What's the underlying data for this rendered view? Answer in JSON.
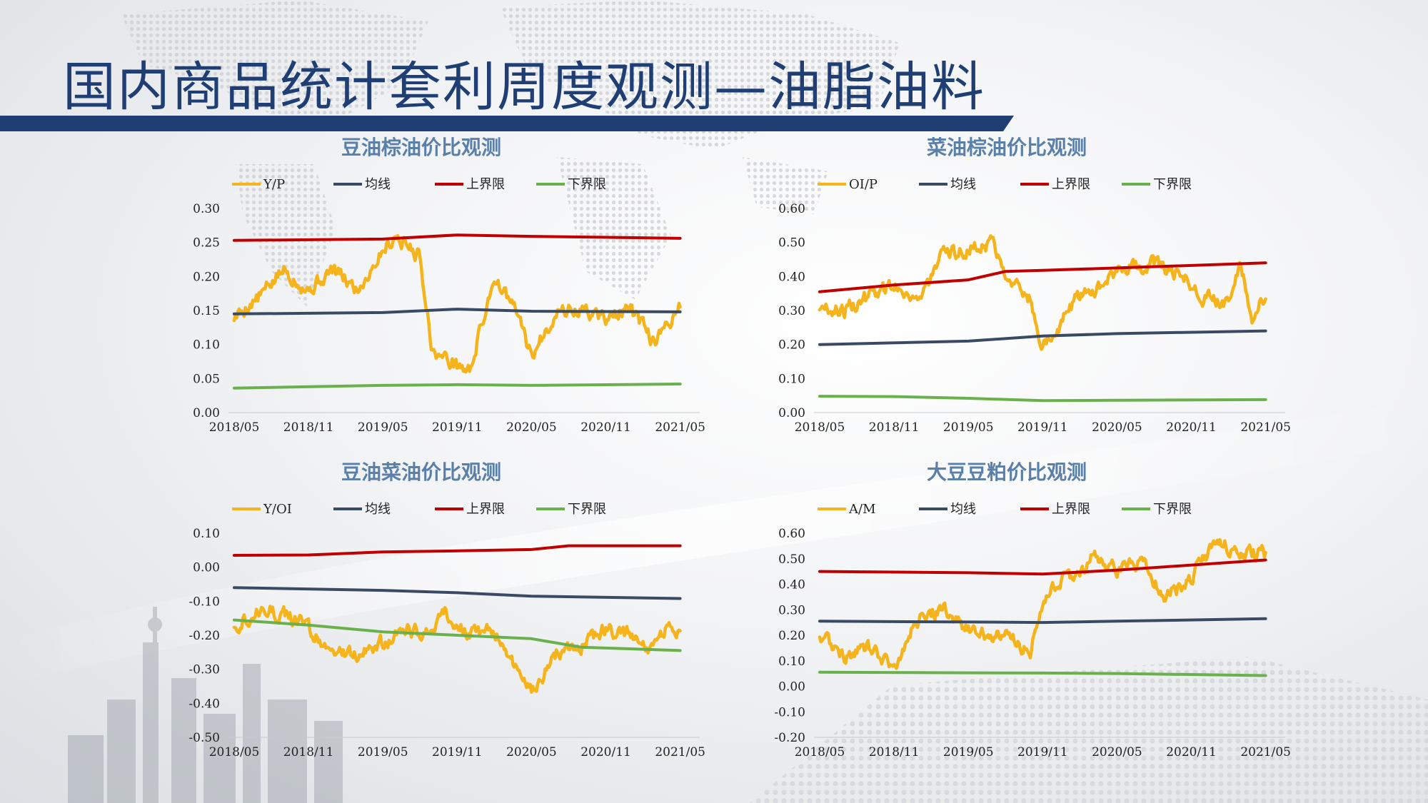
{
  "page": {
    "title": "国内商品统计套利周度观测—油脂油料"
  },
  "chart_data": [
    {
      "type": "line",
      "title": "豆油棕油价比观测",
      "x_ticks": [
        "2018/05",
        "2018/11",
        "2019/05",
        "2019/11",
        "2020/05",
        "2020/11",
        "2021/05"
      ],
      "ylim": [
        0.0,
        0.3
      ],
      "y_ticks": [
        "0.30",
        "0.25",
        "0.20",
        "0.15",
        "0.10",
        "0.05",
        "0.00"
      ],
      "legend_position": "top",
      "grid": false,
      "series": [
        {
          "name": "Y/P",
          "color": "#f5b41b",
          "volatile": true,
          "x": [
            "2018/05",
            "2018/07",
            "2018/09",
            "2018/11",
            "2019/01",
            "2019/03",
            "2019/05",
            "2019/06",
            "2019/08",
            "2019/09",
            "2019/11",
            "2019/12",
            "2020/02",
            "2020/04",
            "2020/05",
            "2020/07",
            "2020/09",
            "2020/11",
            "2021/01",
            "2021/03",
            "2021/04",
            "2021/05"
          ],
          "values": [
            0.14,
            0.17,
            0.21,
            0.18,
            0.21,
            0.18,
            0.24,
            0.26,
            0.23,
            0.09,
            0.07,
            0.06,
            0.2,
            0.14,
            0.08,
            0.15,
            0.15,
            0.14,
            0.15,
            0.1,
            0.13,
            0.16
          ]
        },
        {
          "name": "均线",
          "color": "#3b4a63",
          "x": [
            "2018/05",
            "2019/05",
            "2019/11",
            "2020/05",
            "2021/05"
          ],
          "values": [
            0.145,
            0.147,
            0.152,
            0.149,
            0.148
          ]
        },
        {
          "name": "上界限",
          "color": "#c00000",
          "x": [
            "2018/05",
            "2019/05",
            "2019/11",
            "2020/05",
            "2021/05"
          ],
          "values": [
            0.253,
            0.255,
            0.261,
            0.259,
            0.256
          ]
        },
        {
          "name": "下界限",
          "color": "#6ab04c",
          "x": [
            "2018/05",
            "2019/05",
            "2019/11",
            "2020/05",
            "2021/05"
          ],
          "values": [
            0.036,
            0.04,
            0.041,
            0.04,
            0.042
          ]
        }
      ]
    },
    {
      "type": "line",
      "title": "菜油棕油价比观测",
      "x_ticks": [
        "2018/05",
        "2018/11",
        "2019/05",
        "2019/11",
        "2020/05",
        "2020/11",
        "2021/05"
      ],
      "ylim": [
        0.0,
        0.6
      ],
      "y_ticks": [
        "0.60",
        "0.50",
        "0.40",
        "0.30",
        "0.20",
        "0.10",
        "0.00"
      ],
      "legend_position": "top",
      "grid": false,
      "series": [
        {
          "name": "OI/P",
          "color": "#f5b41b",
          "volatile": true,
          "x": [
            "2018/05",
            "2018/07",
            "2018/09",
            "2018/11",
            "2019/01",
            "2019/03",
            "2019/05",
            "2019/07",
            "2019/08",
            "2019/10",
            "2019/11",
            "2019/12",
            "2020/02",
            "2020/04",
            "2020/06",
            "2020/08",
            "2020/10",
            "2020/12",
            "2021/02",
            "2021/03",
            "2021/04",
            "2021/05"
          ],
          "values": [
            0.31,
            0.3,
            0.34,
            0.38,
            0.33,
            0.46,
            0.48,
            0.5,
            0.42,
            0.33,
            0.2,
            0.24,
            0.35,
            0.38,
            0.43,
            0.44,
            0.41,
            0.34,
            0.33,
            0.44,
            0.27,
            0.35
          ]
        },
        {
          "name": "均线",
          "color": "#3b4a63",
          "x": [
            "2018/05",
            "2019/05",
            "2019/11",
            "2020/05",
            "2021/05"
          ],
          "values": [
            0.2,
            0.21,
            0.225,
            0.232,
            0.24
          ]
        },
        {
          "name": "上界限",
          "color": "#c00000",
          "x": [
            "2018/05",
            "2018/11",
            "2019/05",
            "2019/08",
            "2019/11",
            "2020/05",
            "2021/05"
          ],
          "values": [
            0.355,
            0.375,
            0.39,
            0.415,
            0.418,
            0.425,
            0.44
          ]
        },
        {
          "name": "下界限",
          "color": "#6ab04c",
          "x": [
            "2018/05",
            "2018/11",
            "2019/05",
            "2019/11",
            "2020/05",
            "2021/05"
          ],
          "values": [
            0.048,
            0.047,
            0.042,
            0.035,
            0.036,
            0.038
          ]
        }
      ]
    },
    {
      "type": "line",
      "title": "豆油菜油价比观测",
      "x_ticks": [
        "2018/05",
        "2018/11",
        "2019/05",
        "2019/11",
        "2020/05",
        "2020/11",
        "2021/05"
      ],
      "ylim": [
        -0.5,
        0.1
      ],
      "y_ticks": [
        "0.10",
        "0.00",
        "-0.10",
        "-0.20",
        "-0.30",
        "-0.40",
        "-0.50"
      ],
      "legend_position": "top",
      "grid": false,
      "series": [
        {
          "name": "Y/OI",
          "color": "#f5b41b",
          "volatile": true,
          "x": [
            "2018/05",
            "2018/07",
            "2018/09",
            "2018/11",
            "2019/01",
            "2019/03",
            "2019/05",
            "2019/07",
            "2019/09",
            "2019/10",
            "2019/12",
            "2020/02",
            "2020/04",
            "2020/05",
            "2020/07",
            "2020/09",
            "2020/11",
            "2021/01",
            "2021/03",
            "2021/04",
            "2021/05"
          ],
          "values": [
            -0.17,
            -0.12,
            -0.14,
            -0.18,
            -0.25,
            -0.26,
            -0.22,
            -0.19,
            -0.18,
            -0.13,
            -0.2,
            -0.19,
            -0.3,
            -0.37,
            -0.25,
            -0.23,
            -0.18,
            -0.2,
            -0.24,
            -0.17,
            -0.19
          ]
        },
        {
          "name": "均线",
          "color": "#3b4a63",
          "x": [
            "2018/05",
            "2019/05",
            "2019/11",
            "2020/05",
            "2021/05"
          ],
          "values": [
            -0.06,
            -0.068,
            -0.075,
            -0.085,
            -0.092
          ]
        },
        {
          "name": "上界限",
          "color": "#c00000",
          "x": [
            "2018/05",
            "2018/11",
            "2019/05",
            "2019/11",
            "2020/05",
            "2020/08",
            "2021/05"
          ],
          "values": [
            0.035,
            0.036,
            0.045,
            0.048,
            0.052,
            0.063,
            0.063
          ]
        },
        {
          "name": "下界限",
          "color": "#6ab04c",
          "x": [
            "2018/05",
            "2018/11",
            "2019/05",
            "2019/11",
            "2020/05",
            "2020/09",
            "2021/05"
          ],
          "values": [
            -0.155,
            -0.17,
            -0.19,
            -0.2,
            -0.21,
            -0.235,
            -0.245
          ]
        }
      ]
    },
    {
      "type": "line",
      "title": "大豆豆粕价比观测",
      "x_ticks": [
        "2018/05",
        "2018/11",
        "2019/05",
        "2019/11",
        "2020/05",
        "2020/11",
        "2021/05"
      ],
      "ylim": [
        -0.2,
        0.6
      ],
      "y_ticks": [
        "0.60",
        "0.50",
        "0.40",
        "0.30",
        "0.20",
        "0.10",
        "0.00",
        "-0.10",
        "-0.20"
      ],
      "legend_position": "top",
      "grid": false,
      "series": [
        {
          "name": "A/M",
          "color": "#f5b41b",
          "volatile": true,
          "x": [
            "2018/05",
            "2018/07",
            "2018/09",
            "2018/11",
            "2019/01",
            "2019/03",
            "2019/05",
            "2019/07",
            "2019/09",
            "2019/10",
            "2019/11",
            "2020/01",
            "2020/03",
            "2020/05",
            "2020/07",
            "2020/09",
            "2020/11",
            "2021/01",
            "2021/03",
            "2021/05"
          ],
          "values": [
            0.2,
            0.12,
            0.15,
            0.08,
            0.27,
            0.3,
            0.22,
            0.2,
            0.18,
            0.12,
            0.35,
            0.42,
            0.5,
            0.46,
            0.48,
            0.35,
            0.42,
            0.57,
            0.52,
            0.52
          ]
        },
        {
          "name": "均线",
          "color": "#3b4a63",
          "x": [
            "2018/05",
            "2019/05",
            "2019/11",
            "2020/05",
            "2021/05"
          ],
          "values": [
            0.255,
            0.252,
            0.25,
            0.255,
            0.265
          ]
        },
        {
          "name": "上界限",
          "color": "#c00000",
          "x": [
            "2018/05",
            "2019/05",
            "2019/11",
            "2020/05",
            "2021/05"
          ],
          "values": [
            0.45,
            0.445,
            0.44,
            0.455,
            0.495
          ]
        },
        {
          "name": "下界限",
          "color": "#6ab04c",
          "x": [
            "2018/05",
            "2019/05",
            "2019/11",
            "2020/05",
            "2021/05"
          ],
          "values": [
            0.055,
            0.053,
            0.052,
            0.05,
            0.042
          ]
        }
      ]
    }
  ]
}
